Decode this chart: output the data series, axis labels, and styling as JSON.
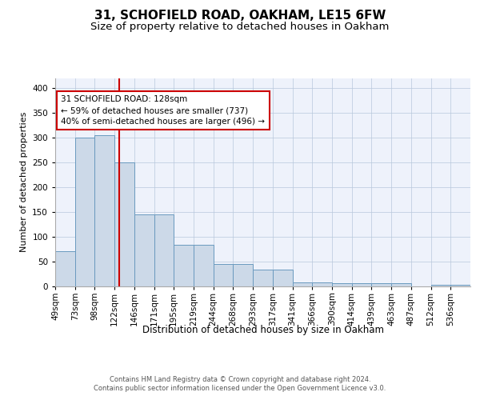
{
  "title1": "31, SCHOFIELD ROAD, OAKHAM, LE15 6FW",
  "title2": "Size of property relative to detached houses in Oakham",
  "xlabel": "Distribution of detached houses by size in Oakham",
  "ylabel": "Number of detached properties",
  "categories": [
    "49sqm",
    "73sqm",
    "98sqm",
    "122sqm",
    "146sqm",
    "171sqm",
    "195sqm",
    "219sqm",
    "244sqm",
    "268sqm",
    "293sqm",
    "317sqm",
    "341sqm",
    "366sqm",
    "390sqm",
    "414sqm",
    "439sqm",
    "463sqm",
    "487sqm",
    "512sqm",
    "536sqm"
  ],
  "bar_heights": [
    70,
    300,
    305,
    250,
    145,
    145,
    83,
    83,
    44,
    44,
    33,
    33,
    8,
    8,
    5,
    5,
    5,
    5,
    0,
    3,
    3
  ],
  "annotation_text": "31 SCHOFIELD ROAD: 128sqm\n← 59% of detached houses are smaller (737)\n40% of semi-detached houses are larger (496) →",
  "bar_color": "#ccd9e8",
  "bar_edge_color": "#6a9abf",
  "line_color": "#cc0000",
  "annotation_box_color": "#ffffff",
  "annotation_box_edge": "#cc0000",
  "background_color": "#eef2fb",
  "footer_text": "Contains HM Land Registry data © Crown copyright and database right 2024.\nContains public sector information licensed under the Open Government Licence v3.0.",
  "ylim": [
    0,
    420
  ],
  "yticks": [
    0,
    50,
    100,
    150,
    200,
    250,
    300,
    350,
    400
  ],
  "title1_fontsize": 11,
  "title2_fontsize": 9.5,
  "xlabel_fontsize": 8.5,
  "ylabel_fontsize": 8,
  "tick_fontsize": 7.5,
  "annotation_fontsize": 7.5,
  "footer_fontsize": 6
}
